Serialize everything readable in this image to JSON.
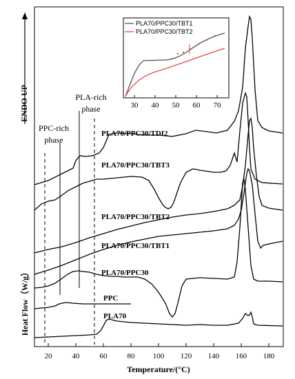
{
  "chart_data": {
    "type": "line",
    "title": "",
    "xlabel": "Temperature/(°C)",
    "ylabel": "Heat Flow（W/g）",
    "y_direction_label": "ENDO UP",
    "xlim": [
      10,
      190
    ],
    "x_ticks": [
      20,
      40,
      60,
      80,
      100,
      120,
      140,
      160,
      180
    ],
    "grid": false,
    "phase_annotations": [
      {
        "label_line1": "PPC-rich",
        "label_line2": "phase"
      },
      {
        "label_line1": "PLA-rich",
        "label_line2": "phase"
      }
    ],
    "series": [
      {
        "name": "PLA70/PPC30/TDI2",
        "points": [
          [
            10,
            268
          ],
          [
            20,
            262
          ],
          [
            30,
            252
          ],
          [
            33,
            249
          ],
          [
            38,
            244
          ],
          [
            40,
            233
          ],
          [
            43,
            226
          ],
          [
            47,
            227
          ],
          [
            52,
            226
          ],
          [
            57,
            222
          ],
          [
            60,
            214
          ],
          [
            62,
            205
          ],
          [
            64,
            195
          ],
          [
            70,
            193
          ],
          [
            80,
            194
          ],
          [
            90,
            196
          ],
          [
            100,
            196
          ],
          [
            110,
            198
          ],
          [
            120,
            194
          ],
          [
            127,
            189
          ],
          [
            135,
            191
          ],
          [
            142,
            193
          ],
          [
            150,
            189
          ],
          [
            155,
            176
          ],
          [
            158,
            161
          ],
          [
            161,
            127
          ],
          [
            163,
            70
          ],
          [
            165,
            38
          ],
          [
            166,
            24
          ],
          [
            167,
            28
          ],
          [
            168,
            55
          ],
          [
            170,
            130
          ],
          [
            172,
            175
          ],
          [
            175,
            185
          ],
          [
            180,
            190
          ],
          [
            190,
            193
          ]
        ]
      },
      {
        "name": "PLA70/PPC30/TBT3",
        "points": [
          [
            10,
            305
          ],
          [
            15,
            296
          ],
          [
            20,
            292
          ],
          [
            25,
            290
          ],
          [
            30,
            283
          ],
          [
            35,
            276
          ],
          [
            40,
            271
          ],
          [
            45,
            266
          ],
          [
            50,
            263
          ],
          [
            55,
            260
          ],
          [
            60,
            260
          ],
          [
            65,
            259
          ],
          [
            70,
            258
          ],
          [
            80,
            256
          ],
          [
            88,
            257
          ],
          [
            93,
            262
          ],
          [
            97,
            275
          ],
          [
            100,
            287
          ],
          [
            103,
            297
          ],
          [
            105,
            301
          ],
          [
            107,
            303
          ],
          [
            109,
            301
          ],
          [
            111,
            294
          ],
          [
            113,
            282
          ],
          [
            116,
            265
          ],
          [
            120,
            250
          ],
          [
            125,
            245
          ],
          [
            130,
            247
          ],
          [
            140,
            250
          ],
          [
            145,
            250
          ],
          [
            149,
            248
          ],
          [
            152,
            240
          ],
          [
            154,
            228
          ],
          [
            155,
            222
          ],
          [
            157,
            235
          ],
          [
            159,
            190
          ],
          [
            161,
            150
          ],
          [
            163,
            135
          ],
          [
            164,
            140
          ],
          [
            165,
            175
          ],
          [
            166,
            215
          ],
          [
            167,
            245
          ],
          [
            170,
            260
          ],
          [
            175,
            265
          ],
          [
            190,
            267
          ]
        ]
      },
      {
        "name": "PLA70/PPC30/TBT2",
        "points": [
          [
            10,
            367
          ],
          [
            20,
            362
          ],
          [
            30,
            358
          ],
          [
            40,
            352
          ],
          [
            50,
            345
          ],
          [
            60,
            339
          ],
          [
            70,
            333
          ],
          [
            80,
            328
          ],
          [
            90,
            323
          ],
          [
            100,
            319
          ],
          [
            110,
            315
          ],
          [
            120,
            312
          ],
          [
            130,
            310
          ],
          [
            140,
            307
          ],
          [
            150,
            303
          ],
          [
            155,
            298
          ],
          [
            159,
            290
          ],
          [
            161,
            270
          ],
          [
            163,
            240
          ],
          [
            165,
            195
          ],
          [
            166,
            175
          ],
          [
            167,
            172
          ],
          [
            168,
            185
          ],
          [
            169,
            215
          ],
          [
            171,
            255
          ],
          [
            173,
            285
          ],
          [
            175,
            298
          ],
          [
            180,
            302
          ],
          [
            190,
            305
          ]
        ]
      },
      {
        "name": "PLA70/PPC30/TBT1",
        "points": [
          [
            10,
            398
          ],
          [
            20,
            392
          ],
          [
            30,
            385
          ],
          [
            40,
            377
          ],
          [
            50,
            369
          ],
          [
            60,
            362
          ],
          [
            70,
            356
          ],
          [
            80,
            351
          ],
          [
            90,
            347
          ],
          [
            100,
            343
          ],
          [
            110,
            341
          ],
          [
            120,
            339
          ],
          [
            130,
            337
          ],
          [
            140,
            335
          ],
          [
            150,
            332
          ],
          [
            155,
            327
          ],
          [
            158,
            318
          ],
          [
            160,
            305
          ],
          [
            162,
            280
          ],
          [
            164,
            252
          ],
          [
            165,
            245
          ],
          [
            166,
            248
          ],
          [
            167,
            258
          ],
          [
            168,
            268
          ],
          [
            170,
            310
          ],
          [
            172,
            350
          ],
          [
            174,
            360
          ],
          [
            176,
            356
          ],
          [
            180,
            354
          ],
          [
            190,
            350
          ]
        ]
      },
      {
        "name": "PLA70/PPC30",
        "points": [
          [
            10,
            418
          ],
          [
            15,
            417
          ],
          [
            20,
            415
          ],
          [
            25,
            411
          ],
          [
            30,
            404
          ],
          [
            34,
            398
          ],
          [
            38,
            394
          ],
          [
            42,
            393
          ],
          [
            45,
            394
          ],
          [
            50,
            395
          ],
          [
            55,
            398
          ],
          [
            60,
            400
          ],
          [
            65,
            401
          ],
          [
            70,
            401
          ],
          [
            75,
            402
          ],
          [
            80,
            402
          ],
          [
            85,
            402
          ],
          [
            90,
            405
          ],
          [
            95,
            412
          ],
          [
            100,
            424
          ],
          [
            105,
            440
          ],
          [
            108,
            455
          ],
          [
            110,
            460
          ],
          [
            112,
            455
          ],
          [
            114,
            440
          ],
          [
            117,
            415
          ],
          [
            120,
            405
          ],
          [
            130,
            403
          ],
          [
            140,
            404
          ],
          [
            150,
            405
          ],
          [
            155,
            402
          ],
          [
            157,
            380
          ],
          [
            159,
            330
          ],
          [
            161,
            265
          ],
          [
            162,
            260
          ],
          [
            163,
            275
          ],
          [
            165,
            330
          ],
          [
            167,
            385
          ],
          [
            169,
            405
          ],
          [
            172,
            408
          ],
          [
            180,
            408
          ],
          [
            190,
            409
          ]
        ]
      },
      {
        "name": "PPC",
        "points": [
          [
            10,
            448
          ],
          [
            20,
            446
          ],
          [
            25,
            444
          ],
          [
            28,
            441
          ],
          [
            30,
            440
          ],
          [
            33,
            439
          ],
          [
            38,
            440
          ],
          [
            45,
            441
          ],
          [
            50,
            441
          ],
          [
            60,
            441
          ],
          [
            70,
            441
          ],
          [
            80,
            441
          ]
        ]
      },
      {
        "name": "PLA70",
        "points": [
          [
            10,
            490
          ],
          [
            20,
            489
          ],
          [
            30,
            488
          ],
          [
            40,
            487
          ],
          [
            50,
            486
          ],
          [
            55,
            485
          ],
          [
            58,
            480
          ],
          [
            60,
            473
          ],
          [
            62,
            465
          ],
          [
            64,
            463
          ],
          [
            66,
            464
          ],
          [
            70,
            466
          ],
          [
            80,
            468
          ],
          [
            90,
            469
          ],
          [
            100,
            470
          ],
          [
            110,
            471
          ],
          [
            120,
            472
          ],
          [
            130,
            471
          ],
          [
            140,
            472
          ],
          [
            150,
            472
          ],
          [
            158,
            469
          ],
          [
            161,
            462
          ],
          [
            163,
            455
          ],
          [
            165,
            458
          ],
          [
            166,
            457
          ],
          [
            167,
            453
          ],
          [
            168,
            460
          ],
          [
            169,
            470
          ],
          [
            172,
            472
          ],
          [
            190,
            473
          ]
        ]
      }
    ],
    "inset": {
      "x_ticks": [
        30,
        40,
        50,
        60,
        70
      ],
      "xlim": [
        25,
        75
      ],
      "series": [
        {
          "name": "PLA70/PPC30/TBT1",
          "color": "#555555"
        },
        {
          "name": "PLA70/PPC30/TBT2",
          "color": "#e8464a"
        }
      ]
    }
  }
}
